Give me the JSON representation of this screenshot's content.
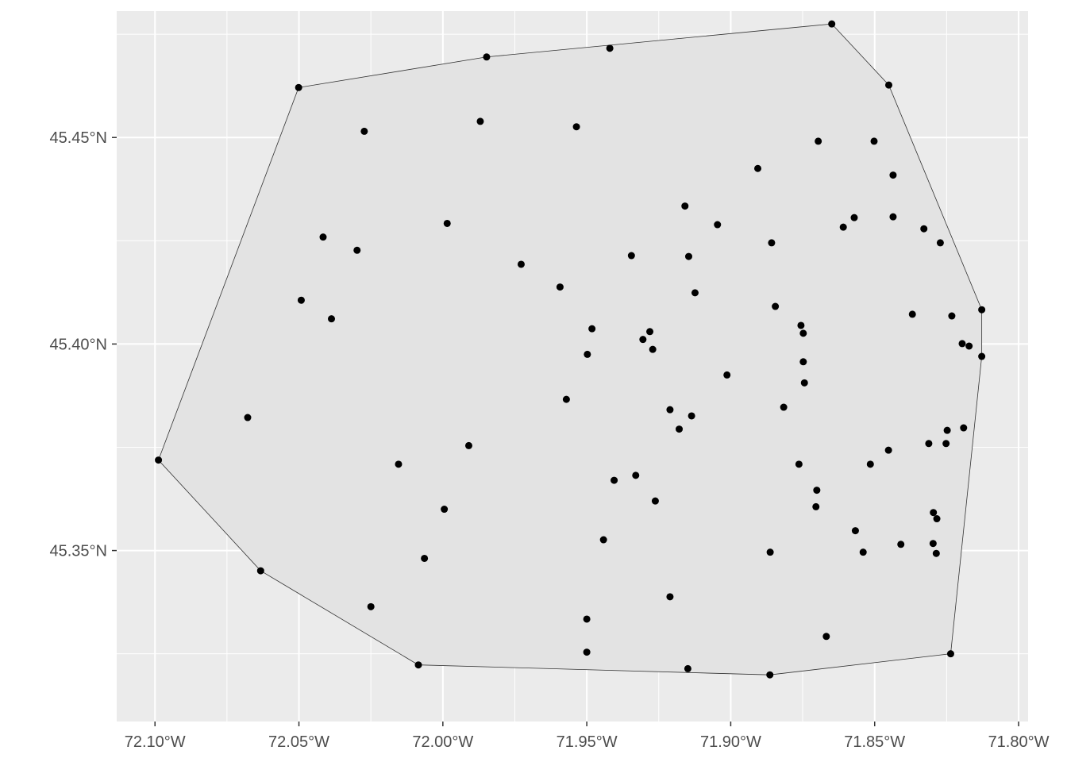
{
  "chart_data": {
    "type": "scatter",
    "title": "",
    "xlabel": "",
    "ylabel": "",
    "xlim": [
      -72.1133,
      -71.7967
    ],
    "ylim": [
      45.3086,
      45.4806
    ],
    "grid": true,
    "x_ticks": [
      {
        "value": -72.1,
        "label": "72.10°W"
      },
      {
        "value": -72.05,
        "label": "72.05°W"
      },
      {
        "value": -72.0,
        "label": "72.00°W"
      },
      {
        "value": -71.95,
        "label": "71.95°W"
      },
      {
        "value": -71.9,
        "label": "71.90°W"
      },
      {
        "value": -71.85,
        "label": "71.85°W"
      },
      {
        "value": -71.8,
        "label": "71.80°W"
      }
    ],
    "y_ticks": [
      {
        "value": 45.35,
        "label": "45.35°N"
      },
      {
        "value": 45.4,
        "label": "45.40°N"
      },
      {
        "value": 45.45,
        "label": "45.45°N"
      }
    ],
    "colors": {
      "panel": "#ebebeb",
      "grid": "#ffffff",
      "hull_fill": "#e3e3e3",
      "hull_stroke": "#333333",
      "point": "#000000"
    },
    "hull": [
      [
        -72.0988,
        45.3719
      ],
      [
        -72.0501,
        45.4621
      ],
      [
        -71.9848,
        45.4695
      ],
      [
        -71.8649,
        45.4775
      ],
      [
        -71.8451,
        45.4627
      ],
      [
        -71.8128,
        45.4083
      ],
      [
        -71.8128,
        45.397
      ],
      [
        -71.8236,
        45.325
      ],
      [
        -71.8864,
        45.3199
      ],
      [
        -72.0085,
        45.3223
      ],
      [
        -72.0633,
        45.3451
      ]
    ],
    "points": [
      [
        -72.0988,
        45.3719
      ],
      [
        -72.0501,
        45.4621
      ],
      [
        -71.9848,
        45.4695
      ],
      [
        -71.942,
        45.4716
      ],
      [
        -71.8649,
        45.4775
      ],
      [
        -71.8451,
        45.4627
      ],
      [
        -72.0273,
        45.4515
      ],
      [
        -71.987,
        45.4539
      ],
      [
        -71.9536,
        45.4526
      ],
      [
        -71.8696,
        45.4491
      ],
      [
        -71.8502,
        45.4491
      ],
      [
        -71.8906,
        45.4425
      ],
      [
        -71.8436,
        45.4409
      ],
      [
        -71.9159,
        45.4334
      ],
      [
        -71.8571,
        45.4306
      ],
      [
        -71.8436,
        45.4308
      ],
      [
        -71.8609,
        45.4283
      ],
      [
        -71.8329,
        45.4279
      ],
      [
        -71.9046,
        45.4289
      ],
      [
        -71.9985,
        45.4292
      ],
      [
        -72.0416,
        45.4259
      ],
      [
        -72.0298,
        45.4227
      ],
      [
        -71.8858,
        45.4245
      ],
      [
        -71.8272,
        45.4245
      ],
      [
        -71.9728,
        45.4193
      ],
      [
        -71.9345,
        45.4214
      ],
      [
        -71.9146,
        45.4212
      ],
      [
        -71.9593,
        45.4138
      ],
      [
        -71.9124,
        45.4124
      ],
      [
        -72.0492,
        45.4106
      ],
      [
        -72.0387,
        45.4061
      ],
      [
        -71.8845,
        45.4091
      ],
      [
        -71.8128,
        45.4083
      ],
      [
        -71.8369,
        45.4072
      ],
      [
        -71.8232,
        45.4068
      ],
      [
        -71.8756,
        45.4045
      ],
      [
        -71.9482,
        45.4037
      ],
      [
        -71.9281,
        45.403
      ],
      [
        -71.8748,
        45.4026
      ],
      [
        -71.9305,
        45.4011
      ],
      [
        -71.8196,
        45.4001
      ],
      [
        -71.8172,
        45.3995
      ],
      [
        -71.9271,
        45.3987
      ],
      [
        -71.9498,
        45.3975
      ],
      [
        -71.8128,
        45.397
      ],
      [
        -71.8748,
        45.3957
      ],
      [
        -71.9013,
        45.3925
      ],
      [
        -71.8744,
        45.3906
      ],
      [
        -71.9571,
        45.3866
      ],
      [
        -72.0678,
        45.3822
      ],
      [
        -71.8816,
        45.3847
      ],
      [
        -71.9211,
        45.3841
      ],
      [
        -71.9136,
        45.3826
      ],
      [
        -71.9179,
        45.3794
      ],
      [
        -71.8191,
        45.3797
      ],
      [
        -71.8248,
        45.3791
      ],
      [
        -71.991,
        45.3754
      ],
      [
        -71.8312,
        45.3759
      ],
      [
        -71.8252,
        45.3759
      ],
      [
        -71.8452,
        45.3743
      ],
      [
        -72.0154,
        45.3709
      ],
      [
        -71.8763,
        45.3709
      ],
      [
        -71.8515,
        45.3709
      ],
      [
        -71.933,
        45.3682
      ],
      [
        -71.9405,
        45.367
      ],
      [
        -71.8701,
        45.3646
      ],
      [
        -71.9262,
        45.362
      ],
      [
        -71.8704,
        45.3606
      ],
      [
        -71.9995,
        45.36
      ],
      [
        -71.8296,
        45.3592
      ],
      [
        -71.8284,
        45.3577
      ],
      [
        -71.8567,
        45.3548
      ],
      [
        -71.9442,
        45.3526
      ],
      [
        -71.8409,
        45.3515
      ],
      [
        -71.8297,
        45.3517
      ],
      [
        -71.8863,
        45.3496
      ],
      [
        -71.854,
        45.3496
      ],
      [
        -71.8286,
        45.3493
      ],
      [
        -72.0064,
        45.3481
      ],
      [
        -72.0633,
        45.3451
      ],
      [
        -72.025,
        45.3364
      ],
      [
        -71.9211,
        45.3388
      ],
      [
        -71.95,
        45.3334
      ],
      [
        -71.8668,
        45.3292
      ],
      [
        -71.95,
        45.3254
      ],
      [
        -71.8236,
        45.325
      ],
      [
        -72.0085,
        45.3223
      ],
      [
        -71.9149,
        45.3214
      ],
      [
        -71.8864,
        45.3199
      ]
    ]
  }
}
